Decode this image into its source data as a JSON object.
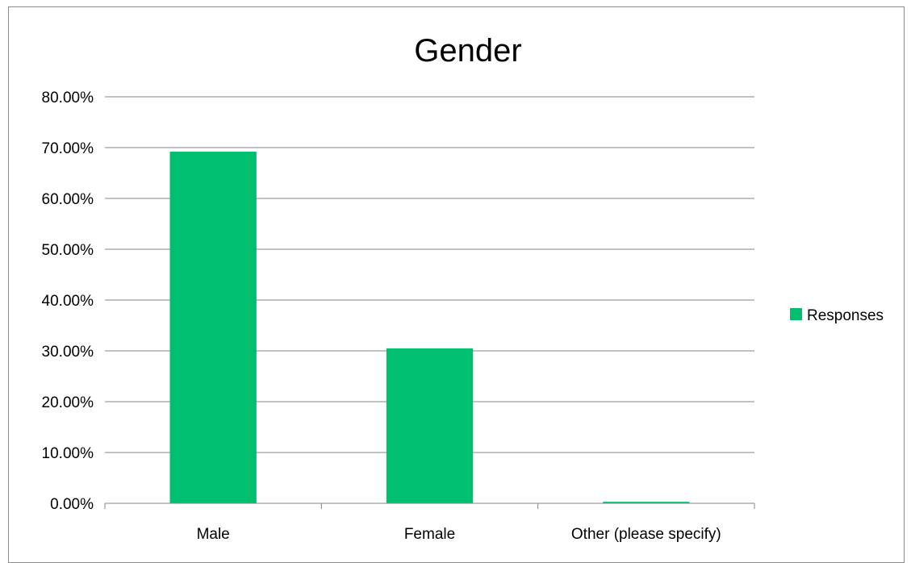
{
  "chart_data": {
    "type": "bar",
    "title": "Gender",
    "xlabel": "",
    "ylabel": "",
    "categories": [
      "Male",
      "Female",
      "Other (please specify)"
    ],
    "series": [
      {
        "name": "Responses",
        "values": [
          0.692,
          0.305,
          0.003
        ],
        "color": "#00bf6f"
      }
    ],
    "ylim": [
      0,
      0.8
    ],
    "yticks": [
      0,
      0.1,
      0.2,
      0.3,
      0.4,
      0.5,
      0.6,
      0.7,
      0.8
    ],
    "ytick_labels": [
      "0.00%",
      "10.00%",
      "20.00%",
      "30.00%",
      "40.00%",
      "50.00%",
      "60.00%",
      "70.00%",
      "80.00%"
    ],
    "grid": true,
    "gridline_color": "#868686",
    "legend_position": "right"
  }
}
